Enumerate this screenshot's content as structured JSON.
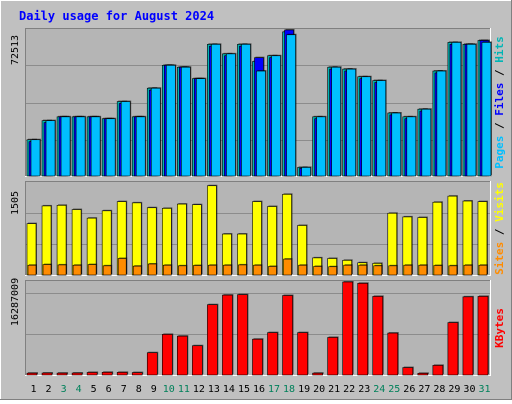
{
  "chart_data": [
    {
      "type": "bar",
      "title": "Daily usage for August 2024",
      "categories": [
        "1",
        "2",
        "3",
        "4",
        "5",
        "6",
        "7",
        "8",
        "9",
        "10",
        "11",
        "12",
        "13",
        "14",
        "15",
        "16",
        "17",
        "18",
        "19",
        "20",
        "21",
        "22",
        "23",
        "24",
        "25",
        "26",
        "27",
        "28",
        "29",
        "30",
        "31"
      ],
      "weekend_days": [
        "3",
        "4",
        "10",
        "11",
        "17",
        "18",
        "24",
        "25",
        "31"
      ],
      "y_tick_label": "72513",
      "ylim": [
        0,
        76500
      ],
      "right_label": {
        "parts": [
          "Pages",
          "Files",
          "Hits"
        ],
        "separator": " / "
      },
      "series": [
        {
          "name": "Hits",
          "color": "#00b5b5",
          "values": [
            19000,
            29000,
            31000,
            31000,
            31000,
            30000,
            39000,
            31000,
            46000,
            58000,
            57000,
            51000,
            69000,
            64000,
            69000,
            60000,
            63000,
            75500,
            4500,
            31000,
            57000,
            56000,
            52000,
            50000,
            33000,
            31000,
            35000,
            55000,
            70000,
            69000,
            71000
          ]
        },
        {
          "name": "Files",
          "color": "#0000ff",
          "values": [
            18000,
            28000,
            31000,
            31000,
            31000,
            30000,
            38000,
            31000,
            45000,
            58000,
            57000,
            51000,
            68000,
            63000,
            68000,
            62000,
            62000,
            76500,
            4000,
            30000,
            56000,
            55000,
            51000,
            49000,
            32000,
            30000,
            34000,
            54000,
            69000,
            69000,
            71000
          ]
        },
        {
          "name": "Pages",
          "color": "#00bfff",
          "values": [
            19000,
            29000,
            31000,
            31000,
            31000,
            30000,
            39000,
            31000,
            46000,
            58000,
            57000,
            51000,
            69000,
            64000,
            69000,
            55000,
            63000,
            74000,
            4500,
            31000,
            57000,
            56000,
            52000,
            50000,
            33000,
            31000,
            35000,
            55000,
            70000,
            69000,
            70000
          ]
        }
      ]
    },
    {
      "type": "bar",
      "categories": [
        "1",
        "2",
        "3",
        "4",
        "5",
        "6",
        "7",
        "8",
        "9",
        "10",
        "11",
        "12",
        "13",
        "14",
        "15",
        "16",
        "17",
        "18",
        "19",
        "20",
        "21",
        "22",
        "23",
        "24",
        "25",
        "26",
        "27",
        "28",
        "29",
        "30",
        "31"
      ],
      "y_tick_label": "1505",
      "ylim": [
        0,
        1505
      ],
      "right_label": {
        "parts": [
          "Sites",
          "Visits"
        ],
        "separator": " / "
      },
      "series": [
        {
          "name": "Visits",
          "color": "#ffff00",
          "values": [
            840,
            1130,
            1140,
            1070,
            930,
            1050,
            1200,
            1180,
            1100,
            1090,
            1160,
            1150,
            1460,
            670,
            670,
            1200,
            1120,
            1320,
            810,
            280,
            270,
            240,
            200,
            190,
            1010,
            950,
            940,
            1190,
            1290,
            1210,
            1200
          ]
        },
        {
          "name": "Sites",
          "color": "#ff8c00",
          "values": [
            160,
            170,
            165,
            160,
            170,
            150,
            270,
            145,
            180,
            160,
            150,
            155,
            160,
            160,
            165,
            160,
            140,
            260,
            160,
            140,
            135,
            160,
            160,
            150,
            150,
            160,
            160,
            155,
            150,
            160,
            160
          ]
        }
      ]
    },
    {
      "type": "bar",
      "categories": [
        "1",
        "2",
        "3",
        "4",
        "5",
        "6",
        "7",
        "8",
        "9",
        "10",
        "11",
        "12",
        "13",
        "14",
        "15",
        "16",
        "17",
        "18",
        "19",
        "20",
        "21",
        "22",
        "23",
        "24",
        "25",
        "26",
        "27",
        "28",
        "29",
        "30",
        "31"
      ],
      "y_tick_label": "16287009",
      "ylim": [
        0,
        21300000
      ],
      "right_label": {
        "parts": [
          "KBytes"
        ],
        "separator": ""
      },
      "series": [
        {
          "name": "KBytes",
          "color": "#ff0000",
          "values": [
            420000,
            450000,
            430000,
            450000,
            580000,
            620000,
            600000,
            550000,
            5100000,
            9300000,
            8900000,
            6700000,
            16100000,
            18300000,
            18400000,
            8200000,
            9700000,
            18200000,
            9700000,
            420000,
            8600000,
            21300000,
            21000000,
            18000000,
            9600000,
            1700000,
            380000,
            2200000,
            12000000,
            17900000,
            18000000
          ]
        }
      ]
    }
  ]
}
